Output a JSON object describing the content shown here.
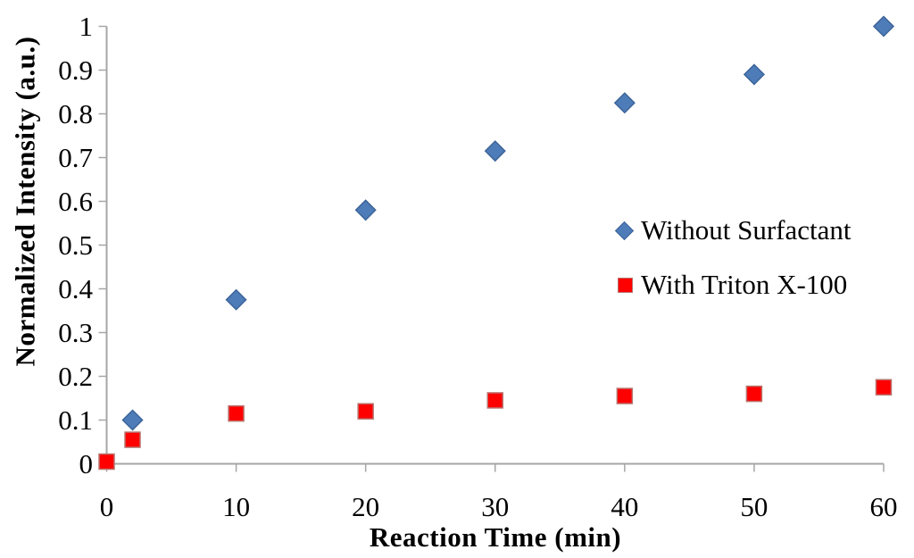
{
  "chart_data": {
    "type": "scatter",
    "title": "",
    "xlabel": "Reaction Time (min)",
    "ylabel": "Normalized Intensity (a.u.)",
    "xlim": [
      0,
      60
    ],
    "ylim": [
      0,
      1
    ],
    "x_ticks": [
      "0",
      "10",
      "20",
      "30",
      "40",
      "50",
      "60"
    ],
    "y_ticks": [
      "0",
      "0.1",
      "0.2",
      "0.3",
      "0.4",
      "0.5",
      "0.6",
      "0.7",
      "0.8",
      "0.9",
      "1"
    ],
    "grid": false,
    "legend_position": "inside-right-middle",
    "axis_color": "#A6A6A6",
    "text_color": "#000000",
    "background_color": "#FFFFFF",
    "series": [
      {
        "name": "Without Surfactant",
        "marker": "diamond",
        "fill": "#4D7CB8",
        "border": "#3D6498",
        "x": [
          2,
          10,
          20,
          30,
          40,
          50,
          60
        ],
        "y": [
          0.1,
          0.375,
          0.58,
          0.715,
          0.825,
          0.89,
          1.0
        ]
      },
      {
        "name": "With Triton X-100",
        "marker": "square",
        "fill": "#FF0000",
        "border": "#B9736E",
        "x": [
          0,
          2,
          10,
          20,
          30,
          40,
          50,
          60
        ],
        "y": [
          0.005,
          0.055,
          0.115,
          0.12,
          0.145,
          0.155,
          0.16,
          0.175
        ]
      }
    ]
  }
}
